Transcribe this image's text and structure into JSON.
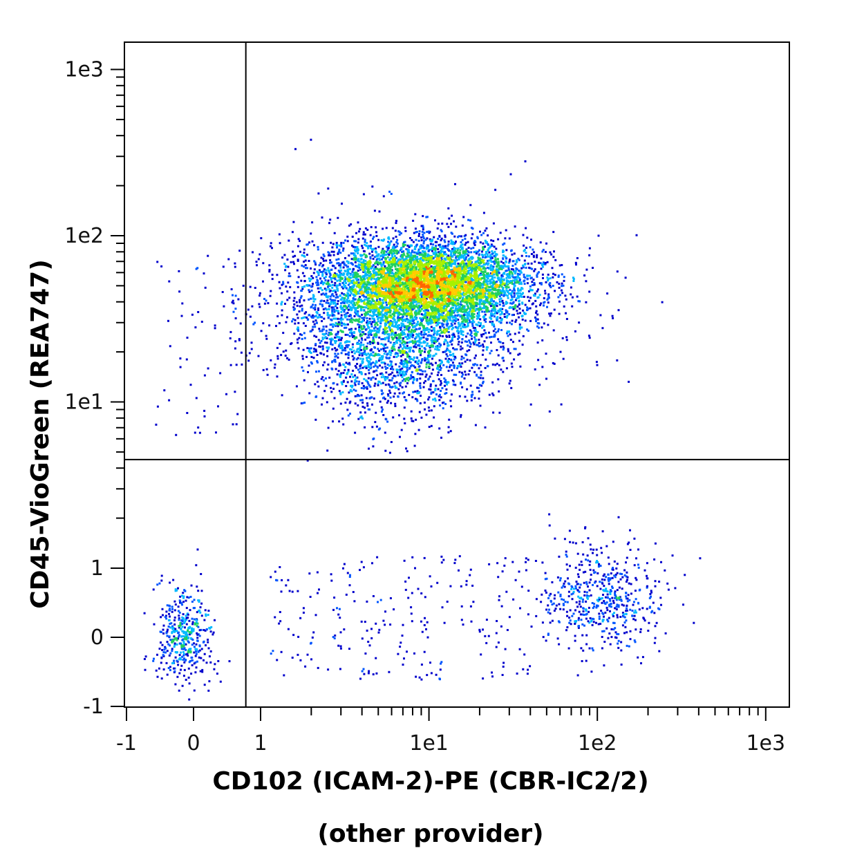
{
  "chart_data": {
    "type": "scatter",
    "style": "flow-cytometry-density-dot-plot",
    "xlabel": "CD102 (ICAM-2)-PE (CBR-IC2/2)",
    "xlabel_line2": "(other provider)",
    "ylabel": "CD45-VioGreen (REA747)",
    "x_scale": "biexponential (linear near 0, log10 above 1)",
    "y_scale": "biexponential (linear near 0, log10 above 1)",
    "xlim": [
      -1,
      1000
    ],
    "ylim": [
      -1,
      1000
    ],
    "x_ticks": [
      "-1",
      "0",
      "1",
      "1e1",
      "1e2",
      "1e3"
    ],
    "y_ticks": [
      "-1",
      "0",
      "1",
      "1e1",
      "1e2",
      "1e3"
    ],
    "quadrant_gate": {
      "x": 0.78,
      "y": 4.5
    },
    "grid": false,
    "legend": "none",
    "density_colors": [
      "#0000cc",
      "#0055ff",
      "#00b8ff",
      "#20d060",
      "#a8f000",
      "#ffcc00",
      "#ff6600"
    ],
    "populations": [
      {
        "name": "CD45+ CD102+ (upper right)",
        "x_center": 10,
        "y_center": 52,
        "x_spread_decades": 0.35,
        "y_spread_decades": 0.2,
        "tail": "extends to lower CD45 (~10) and down to ~5",
        "relative_size": "dense, majority of events"
      },
      {
        "name": "CD45- CD102+ (lower right)",
        "x_center": 100,
        "y_center": 1.1,
        "relative_size": "sparse cluster"
      },
      {
        "name": "CD45- CD102- (lower left)",
        "x_center": -0.1,
        "y_center": 0,
        "relative_size": "sparse cluster"
      },
      {
        "name": "CD45- CD102 intermediate (scatter)",
        "x_range": [
          1,
          30
        ],
        "y_center": 0,
        "relative_size": "very sparse"
      },
      {
        "name": "CD45+ CD102- (upper left)",
        "x_range": [
          -0.6,
          0.7
        ],
        "y_range": [
          5,
          80
        ],
        "relative_size": "very sparse"
      }
    ]
  }
}
